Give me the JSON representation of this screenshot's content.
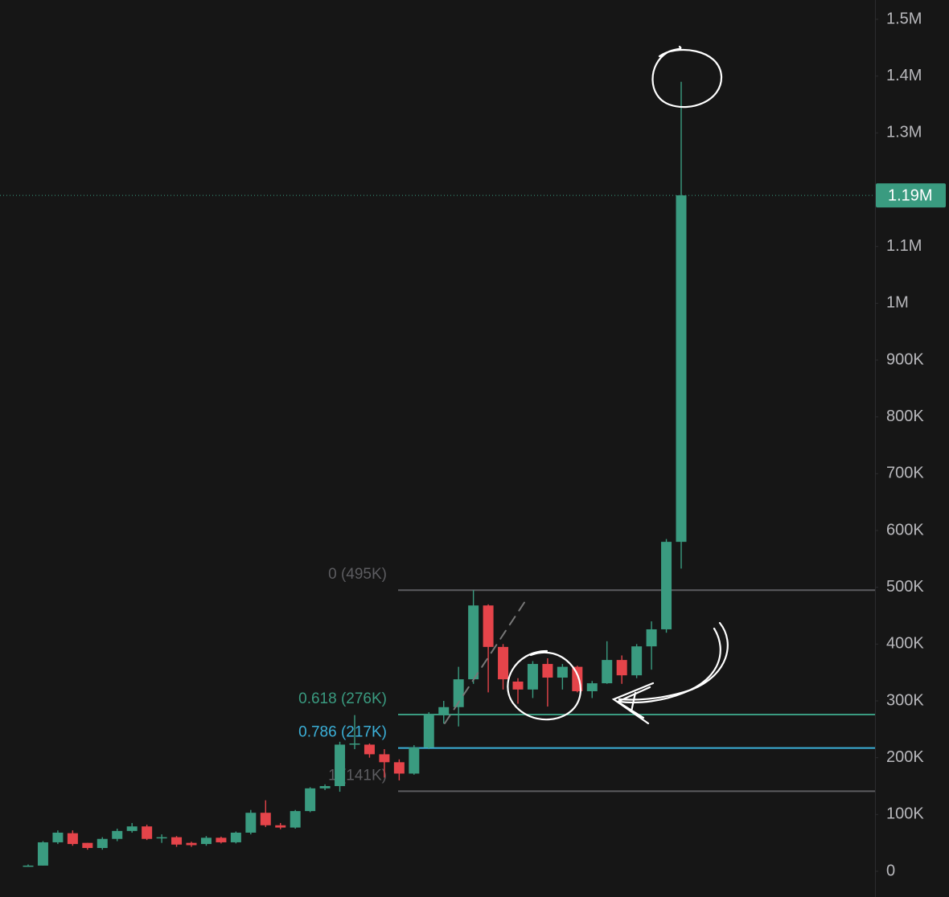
{
  "chart_data": {
    "type": "candlestick",
    "ylim": [
      0,
      1500000
    ],
    "yticks": [
      0,
      {
        "value": 100000,
        "label": "100K"
      },
      {
        "value": 200000,
        "label": "200K"
      },
      {
        "value": 300000,
        "label": "300K"
      },
      {
        "value": 400000,
        "label": "400K"
      },
      {
        "value": 500000,
        "label": "500K"
      },
      {
        "value": 600000,
        "label": "600K"
      },
      {
        "value": 700000,
        "label": "700K"
      },
      {
        "value": 800000,
        "label": "800K"
      },
      {
        "value": 900000,
        "label": "900K"
      },
      {
        "value": 1000000,
        "label": "1M"
      },
      {
        "value": 1100000,
        "label": "1.1M"
      },
      {
        "value": 1300000,
        "label": "1.3M"
      },
      {
        "value": 1400000,
        "label": "1.4M"
      },
      {
        "value": 1500000,
        "label": "1.5M"
      }
    ],
    "up_color": "#3a9b80",
    "down_color": "#e5444a",
    "open": [
      8000,
      10000,
      51000,
      67000,
      50000,
      41000,
      57000,
      71000,
      79000,
      58000,
      60000,
      50000,
      48000,
      59000,
      51000,
      68000,
      103000,
      81000,
      77000,
      106000,
      146000,
      150000,
      223000,
      223000,
      206000,
      192000,
      172000,
      218000,
      277000,
      289000,
      338000,
      468000,
      395000,
      334000,
      320000,
      365000,
      341000,
      360000,
      317000,
      331000,
      372000,
      345000,
      396000,
      426000,
      580000
    ],
    "high": [
      12000,
      53000,
      72000,
      72000,
      50000,
      60000,
      75000,
      85000,
      82000,
      65000,
      62000,
      52000,
      62000,
      61000,
      70000,
      108000,
      125000,
      85000,
      108000,
      148000,
      153000,
      228000,
      275000,
      225000,
      215000,
      197000,
      222000,
      280000,
      300000,
      360000,
      495000,
      470000,
      400000,
      340000,
      370000,
      375000,
      365000,
      362000,
      335000,
      405000,
      380000,
      400000,
      440000,
      585000,
      1390000
    ],
    "low": [
      8000,
      10000,
      48000,
      45000,
      38000,
      38000,
      53000,
      68000,
      55000,
      50000,
      43000,
      43000,
      45000,
      49000,
      49000,
      65000,
      78000,
      74000,
      75000,
      104000,
      143000,
      140000,
      215000,
      200000,
      165000,
      160000,
      170000,
      215000,
      260000,
      255000,
      330000,
      315000,
      320000,
      295000,
      305000,
      290000,
      320000,
      315000,
      305000,
      330000,
      330000,
      340000,
      355000,
      420000,
      533000
    ],
    "close": [
      10000,
      51000,
      68000,
      48000,
      41000,
      57000,
      71000,
      79000,
      57000,
      60000,
      47000,
      46000,
      59000,
      51000,
      68000,
      103000,
      81000,
      77000,
      106000,
      146000,
      150000,
      223000,
      225000,
      206000,
      192000,
      172000,
      218000,
      277000,
      289000,
      338000,
      468000,
      395000,
      338000,
      320000,
      365000,
      341000,
      360000,
      317000,
      331000,
      372000,
      345000,
      396000,
      426000,
      580000,
      1190000
    ],
    "last_price": {
      "value": 1190000,
      "label": "1.19M"
    },
    "levels": [
      {
        "value": 495000,
        "label": "0 (495K)",
        "color": "#5c5c60"
      },
      {
        "value": 276000,
        "label": "0.618 (276K)",
        "color": "#3a9b80"
      },
      {
        "value": 217000,
        "label": "0.786 (217K)",
        "color": "#3bb0d8"
      },
      {
        "value": 141000,
        "label": "1 (141K)",
        "color": "#5c5c60"
      }
    ]
  }
}
